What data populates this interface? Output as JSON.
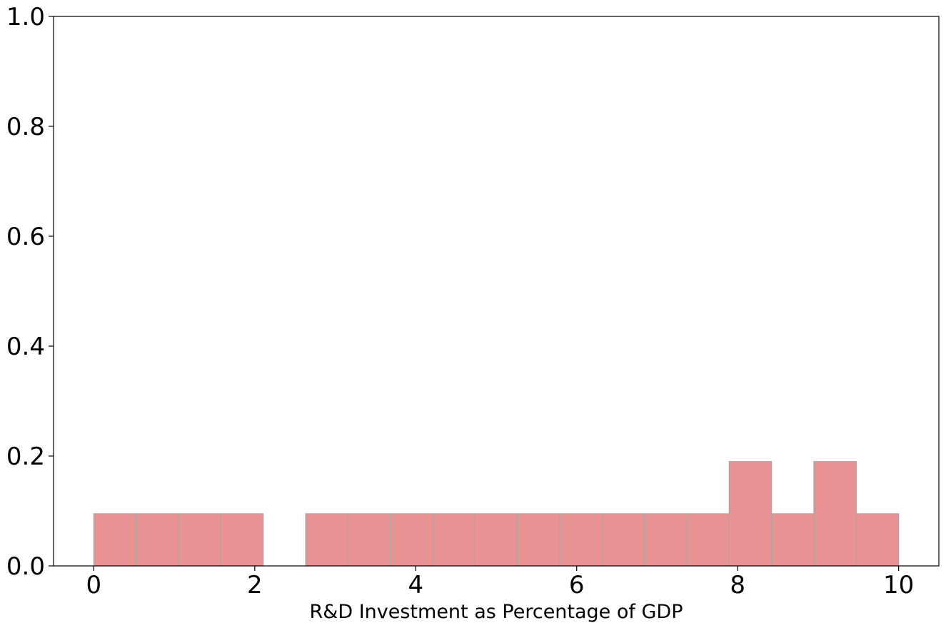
{
  "chart_data": {
    "type": "bar",
    "subtype": "histogram",
    "title": "",
    "xlabel": "R&D Investment as Percentage of GDP",
    "ylabel": "",
    "xlim": [
      -0.5,
      10.5
    ],
    "ylim": [
      0,
      1.0
    ],
    "xticks": [
      0,
      2,
      4,
      6,
      8,
      10
    ],
    "xtick_labels": [
      "0",
      "2",
      "4",
      "6",
      "8",
      "10"
    ],
    "yticks": [
      0,
      0.2,
      0.4,
      0.6,
      0.8,
      1.0
    ],
    "ytick_labels": [
      "0.0",
      "0.2",
      "0.4",
      "0.6",
      "0.8",
      "1.0"
    ],
    "grid": false,
    "bin_edges": [
      0,
      0.526,
      1.053,
      1.579,
      2.105,
      2.632,
      3.158,
      3.684,
      4.211,
      4.737,
      5.263,
      5.789,
      6.316,
      6.842,
      7.368,
      7.895,
      8.421,
      8.947,
      9.474,
      10
    ],
    "values": [
      0.095,
      0.095,
      0.095,
      0.095,
      0,
      0.095,
      0.095,
      0.095,
      0.095,
      0.095,
      0.095,
      0.095,
      0.095,
      0.095,
      0.095,
      0.19,
      0.095,
      0.19,
      0.095
    ],
    "bar_color": "#e89293",
    "edge_color": "#a8a8a8"
  }
}
